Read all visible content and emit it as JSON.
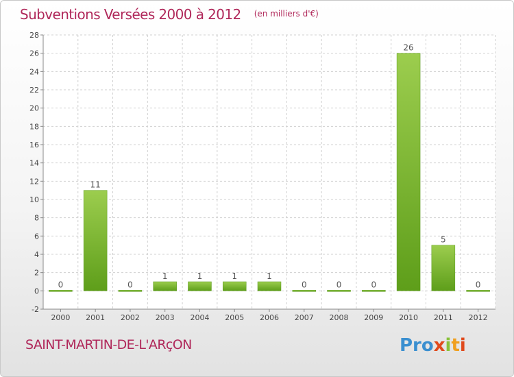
{
  "header": {
    "title": "Subventions Versées 2000 à 2012",
    "unit": "(en milliers d'€)"
  },
  "footer": {
    "commune": "SAINT-MARTIN-DE-L'ARçON",
    "logo": [
      "Pro",
      "x",
      "i",
      "t",
      "i"
    ]
  },
  "chart_data": {
    "type": "bar",
    "title": "Subventions Versées 2000 à 2012",
    "unit": "(en milliers d'€)",
    "categories": [
      "2000",
      "2001",
      "2002",
      "2003",
      "2004",
      "2005",
      "2006",
      "2007",
      "2008",
      "2009",
      "2010",
      "2011",
      "2012"
    ],
    "values": [
      0,
      11,
      0,
      1,
      1,
      1,
      1,
      0,
      0,
      0,
      26,
      5,
      0
    ],
    "ylim": [
      -2,
      28
    ],
    "yticks": [
      -2,
      0,
      2,
      4,
      6,
      8,
      10,
      12,
      14,
      16,
      18,
      20,
      22,
      24,
      26,
      28
    ],
    "grid": "y-dashed",
    "bar_color_top": "#9ccd4e",
    "bar_color_bottom": "#5e9e1a"
  }
}
